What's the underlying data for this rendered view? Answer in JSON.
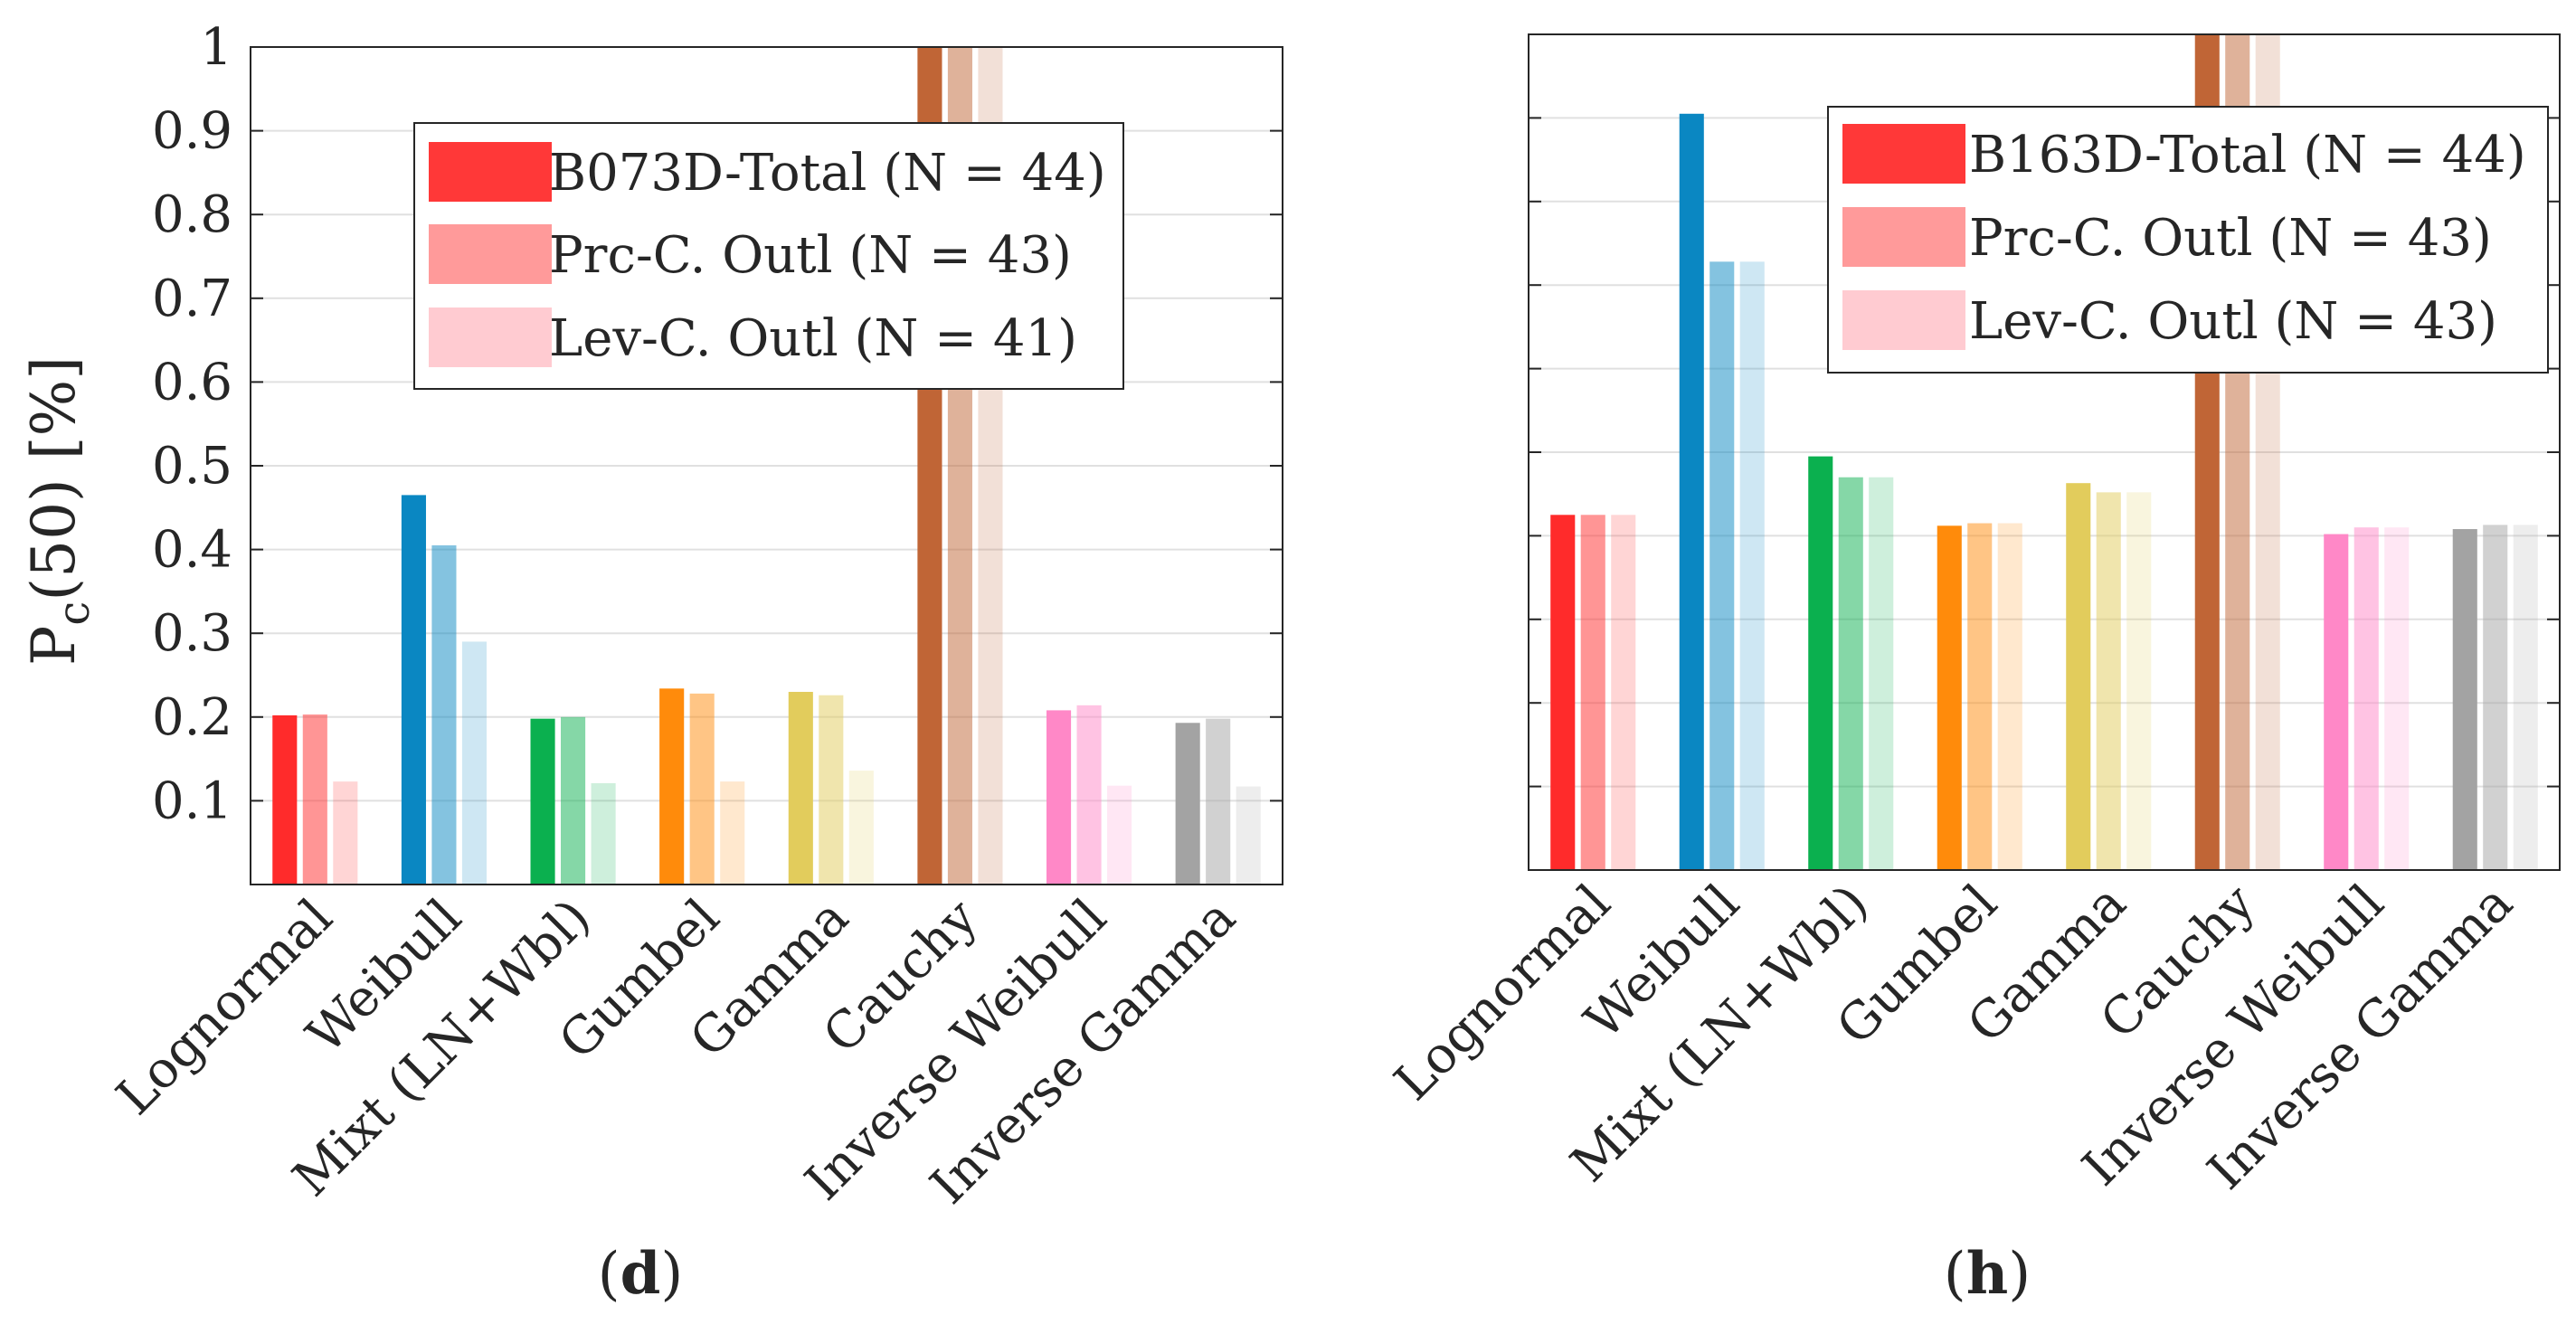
{
  "chart_data": [
    {
      "type": "bar",
      "panel_label": "d",
      "ylabel": "P",
      "ylabel_sub": "c",
      "ylabel_rest": "(50) [%]",
      "ylim": [
        0,
        1
      ],
      "yticks": [
        "0.1",
        "0.2",
        "0.3",
        "0.4",
        "0.5",
        "0.6",
        "0.7",
        "0.8",
        "0.9",
        "1"
      ],
      "show_ytick_labels": true,
      "grid": "horizontal",
      "legend_position": "top-center",
      "categories": [
        "Lognormal",
        "Weibull",
        "Mixt (LN+Wbl)",
        "Gumbel",
        "Gamma",
        "Cauchy",
        "Inverse Weibull",
        "Inverse Gamma"
      ],
      "category_colors": [
        "#ff2b2b",
        "#0a87c2",
        "#0bb04f",
        "#ff8b0b",
        "#e2cc5c",
        "#c06536",
        "#ff88c7",
        "#a3a3a3"
      ],
      "series": [
        {
          "name": "B073D-Total (N = 44)",
          "opacity": 1.0,
          "legend_color": "#ff3838",
          "values": [
            0.202,
            0.465,
            0.198,
            0.234,
            0.23,
            1.0,
            0.208,
            0.193
          ]
        },
        {
          "name": "Prc-C. Outl (N = 43)",
          "opacity": 0.5,
          "legend_color": "#ff9a9a",
          "values": [
            0.203,
            0.405,
            0.2,
            0.228,
            0.226,
            1.0,
            0.214,
            0.198
          ]
        },
        {
          "name": "Lev-C. Outl (N = 41)",
          "opacity": 0.2,
          "legend_color": "#ffcbd1",
          "values": [
            0.123,
            0.29,
            0.121,
            0.123,
            0.136,
            1.0,
            0.118,
            0.117
          ]
        }
      ]
    },
    {
      "type": "bar",
      "panel_label": "h",
      "ylim": [
        0,
        1
      ],
      "yticks": [
        "0.1",
        "0.2",
        "0.3",
        "0.4",
        "0.5",
        "0.6",
        "0.7",
        "0.8",
        "0.9",
        "1"
      ],
      "show_ytick_labels": false,
      "grid": "horizontal",
      "legend_position": "top-right",
      "categories": [
        "Lognormal",
        "Weibull",
        "Mixt (LN+Wbl)",
        "Gumbel",
        "Gamma",
        "Cauchy",
        "Inverse Weibull",
        "Inverse Gamma"
      ],
      "category_colors": [
        "#ff2b2b",
        "#0a87c2",
        "#0bb04f",
        "#ff8b0b",
        "#e2cc5c",
        "#c06536",
        "#ff88c7",
        "#a3a3a3"
      ],
      "series": [
        {
          "name": "B163D-Total (N = 44)",
          "opacity": 1.0,
          "legend_color": "#ff3838",
          "values": [
            0.425,
            0.905,
            0.495,
            0.412,
            0.463,
            1.0,
            0.402,
            0.408
          ]
        },
        {
          "name": "Prc-C. Outl (N = 43)",
          "opacity": 0.5,
          "legend_color": "#ff9a9a",
          "values": [
            0.425,
            0.728,
            0.47,
            0.415,
            0.452,
            1.0,
            0.41,
            0.413
          ]
        },
        {
          "name": "Lev-C. Outl (N = 43)",
          "opacity": 0.2,
          "legend_color": "#ffcbd1",
          "values": [
            0.425,
            0.728,
            0.47,
            0.415,
            0.452,
            1.0,
            0.41,
            0.413
          ]
        }
      ]
    }
  ]
}
